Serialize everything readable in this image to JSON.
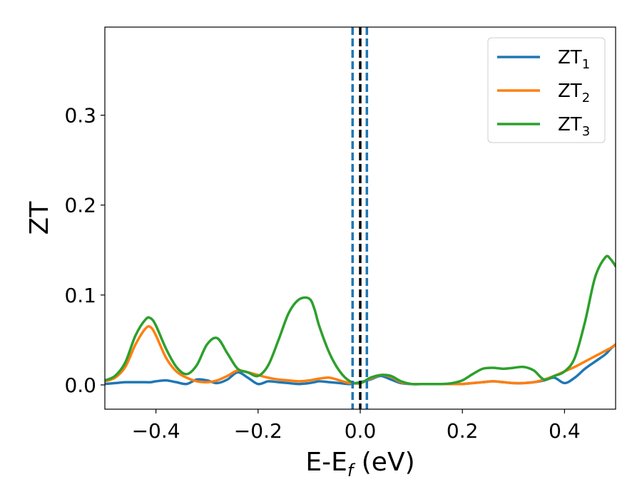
{
  "chart_data": {
    "type": "line",
    "title": "",
    "xlabel": {
      "main": "E-E",
      "sub": "f",
      "rest": " (eV)"
    },
    "ylabel": "ZT",
    "xlim": [
      -0.5,
      0.5
    ],
    "ylim": [
      -0.027,
      0.398
    ],
    "xticks": [
      -0.4,
      -0.2,
      0.0,
      0.2,
      0.4
    ],
    "xtick_labels": [
      "−0.4",
      "−0.2",
      "0.0",
      "0.2",
      "0.4"
    ],
    "yticks": [
      0.0,
      0.1,
      0.2,
      0.3
    ],
    "ytick_labels": [
      "0.0",
      "0.1",
      "0.2",
      "0.3"
    ],
    "grid": false,
    "legend_position": "top-right",
    "vlines": [
      {
        "x": -0.015,
        "color": "#1f77b4",
        "style": "dashed"
      },
      {
        "x": 0.0,
        "color": "#000000",
        "style": "dashed"
      },
      {
        "x": 0.013,
        "color": "#1f77b4",
        "style": "dashed"
      }
    ],
    "x": [
      -0.5,
      -0.48,
      -0.46,
      -0.44,
      -0.42,
      -0.41,
      -0.4,
      -0.38,
      -0.36,
      -0.34,
      -0.32,
      -0.3,
      -0.28,
      -0.26,
      -0.24,
      -0.22,
      -0.2,
      -0.18,
      -0.16,
      -0.14,
      -0.12,
      -0.1,
      -0.09,
      -0.08,
      -0.06,
      -0.04,
      -0.02,
      0.0,
      0.02,
      0.04,
      0.06,
      0.08,
      0.1,
      0.12,
      0.14,
      0.16,
      0.18,
      0.2,
      0.22,
      0.24,
      0.26,
      0.28,
      0.3,
      0.32,
      0.34,
      0.36,
      0.38,
      0.4,
      0.42,
      0.44,
      0.46,
      0.48,
      0.49,
      0.5
    ],
    "series": [
      {
        "name": "ZT",
        "sub": "1",
        "color": "#1f77b4",
        "values": [
          0.001,
          0.002,
          0.003,
          0.003,
          0.003,
          0.003,
          0.004,
          0.005,
          0.003,
          0.001,
          0.006,
          0.005,
          0.002,
          0.006,
          0.014,
          0.008,
          0.001,
          0.004,
          0.003,
          0.002,
          0.001,
          0.002,
          0.003,
          0.004,
          0.003,
          0.002,
          0.001,
          0.003,
          0.006,
          0.01,
          0.006,
          0.002,
          0.001,
          0.001,
          0.001,
          0.001,
          0.001,
          0.001,
          0.002,
          0.003,
          0.004,
          0.003,
          0.002,
          0.002,
          0.003,
          0.005,
          0.008,
          0.002,
          0.008,
          0.018,
          0.026,
          0.034,
          0.04,
          0.045
        ]
      },
      {
        "name": "ZT",
        "sub": "2",
        "color": "#ff7f0e",
        "values": [
          0.004,
          0.008,
          0.02,
          0.045,
          0.063,
          0.064,
          0.055,
          0.03,
          0.015,
          0.008,
          0.004,
          0.003,
          0.005,
          0.01,
          0.016,
          0.014,
          0.011,
          0.008,
          0.006,
          0.005,
          0.004,
          0.005,
          0.006,
          0.007,
          0.008,
          0.005,
          0.002,
          0.002,
          0.007,
          0.011,
          0.009,
          0.003,
          0.001,
          0.001,
          0.001,
          0.001,
          0.001,
          0.001,
          0.002,
          0.003,
          0.004,
          0.003,
          0.002,
          0.002,
          0.003,
          0.006,
          0.01,
          0.015,
          0.02,
          0.026,
          0.032,
          0.038,
          0.041,
          0.045
        ]
      },
      {
        "name": "ZT",
        "sub": "3",
        "color": "#2ca02c",
        "values": [
          0.005,
          0.01,
          0.025,
          0.055,
          0.073,
          0.074,
          0.066,
          0.04,
          0.02,
          0.012,
          0.022,
          0.045,
          0.052,
          0.035,
          0.018,
          0.014,
          0.01,
          0.022,
          0.05,
          0.08,
          0.095,
          0.096,
          0.085,
          0.065,
          0.035,
          0.015,
          0.004,
          0.002,
          0.008,
          0.011,
          0.01,
          0.004,
          0.001,
          0.001,
          0.001,
          0.001,
          0.002,
          0.005,
          0.012,
          0.018,
          0.019,
          0.018,
          0.019,
          0.02,
          0.016,
          0.006,
          0.01,
          0.015,
          0.03,
          0.07,
          0.12,
          0.142,
          0.14,
          0.132
        ]
      }
    ]
  }
}
